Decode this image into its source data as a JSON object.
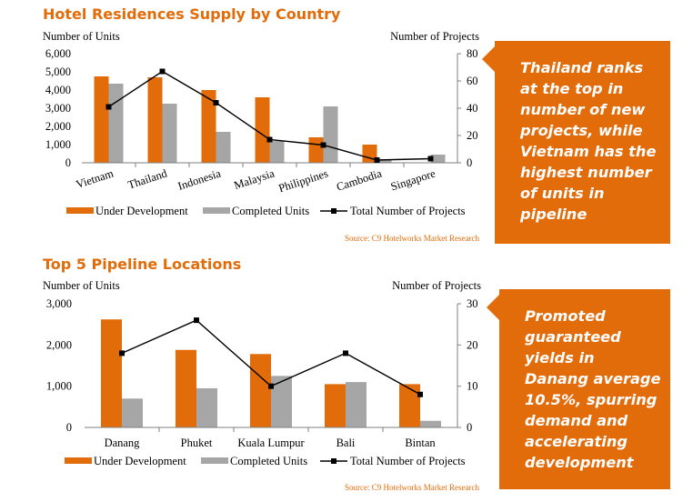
{
  "page": {
    "colors": {
      "accent": "#e36c0a",
      "under": "#e36c0a",
      "completed": "#a6a6a6",
      "line": "#000000",
      "source": "#e36c0a"
    }
  },
  "callouts": {
    "top": "Thailand ranks at the top in number of new projects, while Vietnam has the highest number of units in pipeline",
    "bottom": "Promoted guaranteed yields in Danang average 10.5%, spurring demand and accelerating development"
  },
  "chart_data": [
    {
      "type": "bar",
      "title": "Hotel Residences Supply by Country",
      "categories": [
        "Vietnam",
        "Thailand",
        "Indonesia",
        "Malaysia",
        "Philippines",
        "Cambodia",
        "Singapore"
      ],
      "series": [
        {
          "name": "Under Development",
          "type": "bar",
          "axis": "left",
          "values": [
            4750,
            4700,
            4000,
            3600,
            1400,
            1000,
            0
          ]
        },
        {
          "name": "Completed Units",
          "type": "bar",
          "axis": "left",
          "values": [
            4350,
            3250,
            1700,
            1200,
            3100,
            200,
            450
          ]
        },
        {
          "name": "Total Number of Projects",
          "type": "line",
          "axis": "right",
          "values": [
            41,
            67,
            44,
            17,
            13,
            2,
            3
          ]
        }
      ],
      "ylabel": "Number of Units",
      "y2label": "Number of Projects",
      "ylim": [
        0,
        6000
      ],
      "yticks": [
        "0",
        "1,000",
        "2,000",
        "3,000",
        "4,000",
        "5,000",
        "6,000"
      ],
      "y2lim": [
        0,
        80
      ],
      "y2ticks": [
        "0",
        "20",
        "40",
        "60",
        "80"
      ],
      "grid": false,
      "legend_position": "bottom",
      "source": "Source: C9 Hotelworks Market Research"
    },
    {
      "type": "bar",
      "title": "Top 5 Pipeline Locations",
      "categories": [
        "Danang",
        "Phuket",
        "Kuala Lumpur",
        "Bali",
        "Bintan"
      ],
      "series": [
        {
          "name": "Under Development",
          "type": "bar",
          "axis": "left",
          "values": [
            2620,
            1880,
            1780,
            1050,
            1050
          ]
        },
        {
          "name": "Completed Units",
          "type": "bar",
          "axis": "left",
          "values": [
            700,
            950,
            1250,
            1100,
            160
          ]
        },
        {
          "name": "Total Number of Projects",
          "type": "line",
          "axis": "right",
          "values": [
            18,
            26,
            10,
            18,
            8
          ]
        }
      ],
      "ylabel": "Number of Units",
      "y2label": "Number of Projects",
      "ylim": [
        0,
        3000
      ],
      "yticks": [
        "0",
        "1,000",
        "2,000",
        "3,000"
      ],
      "y2lim": [
        0,
        30
      ],
      "y2ticks": [
        "0",
        "10",
        "20",
        "30"
      ],
      "grid": false,
      "legend_position": "bottom",
      "source": "Source: C9 Hotelworks Market Research"
    }
  ]
}
